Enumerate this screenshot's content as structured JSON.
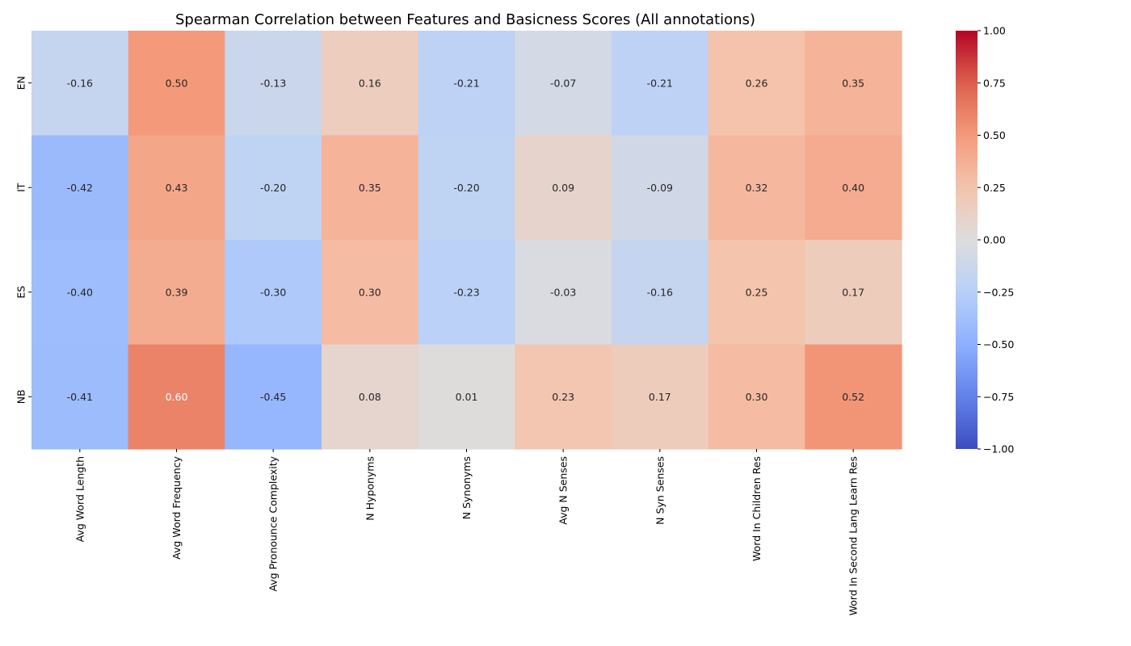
{
  "chart_data": {
    "type": "heatmap",
    "title": "Spearman Correlation between Features and Basicness Scores (All annotations)",
    "xlabel": "",
    "ylabel": "",
    "rows": [
      "EN",
      "IT",
      "ES",
      "NB"
    ],
    "columns": [
      "Avg Word Length",
      "Avg Word Frequency",
      "Avg Pronounce Complexity",
      "N Hyponyms",
      "N Synonyms",
      "Avg N Senses",
      "N Syn Senses",
      "Word In Children Res",
      "Word In Second Lang Learn Res"
    ],
    "values": [
      [
        -0.16,
        0.5,
        -0.13,
        0.16,
        -0.21,
        -0.07,
        -0.21,
        0.26,
        0.35
      ],
      [
        -0.42,
        0.43,
        -0.2,
        0.35,
        -0.2,
        0.09,
        -0.09,
        0.32,
        0.4
      ],
      [
        -0.4,
        0.39,
        -0.3,
        0.3,
        -0.23,
        -0.03,
        -0.16,
        0.25,
        0.17
      ],
      [
        -0.41,
        0.6,
        -0.45,
        0.08,
        0.01,
        0.23,
        0.17,
        0.3,
        0.52
      ]
    ],
    "value_format": "0.00",
    "colormap": "coolwarm",
    "vmin": -1.0,
    "vmax": 1.0,
    "colorbar": {
      "ticks": [
        1.0,
        0.75,
        0.5,
        0.25,
        0.0,
        -0.25,
        -0.5,
        -0.75,
        -1.0
      ],
      "tick_labels": [
        "1.00",
        "0.75",
        "0.50",
        "0.25",
        "0.00",
        "−0.25",
        "−0.50",
        "−0.75",
        "−1.00"
      ]
    }
  }
}
